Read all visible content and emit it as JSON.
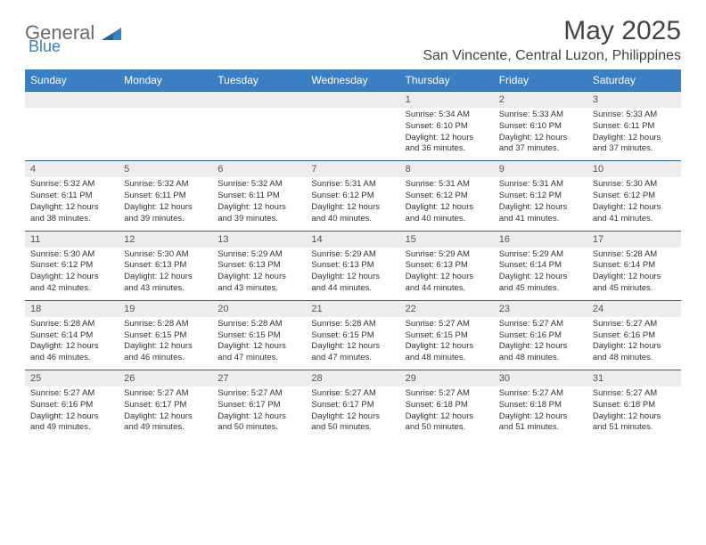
{
  "brand": {
    "part1": "General",
    "part2": "Blue"
  },
  "title": "May 2025",
  "location": "San Vincente, Central Luzon, Philippines",
  "header_color": "#3a7fc4",
  "numrow_bg": "#ededed",
  "border_color": "#2d5f93",
  "day_names": [
    "Sunday",
    "Monday",
    "Tuesday",
    "Wednesday",
    "Thursday",
    "Friday",
    "Saturday"
  ],
  "weeks": [
    {
      "nums": [
        "",
        "",
        "",
        "",
        "1",
        "2",
        "3"
      ],
      "cells": [
        null,
        null,
        null,
        null,
        {
          "sunrise": "5:34 AM",
          "sunset": "6:10 PM",
          "dl1": "Daylight: 12 hours",
          "dl2": "and 36 minutes."
        },
        {
          "sunrise": "5:33 AM",
          "sunset": "6:10 PM",
          "dl1": "Daylight: 12 hours",
          "dl2": "and 37 minutes."
        },
        {
          "sunrise": "5:33 AM",
          "sunset": "6:11 PM",
          "dl1": "Daylight: 12 hours",
          "dl2": "and 37 minutes."
        }
      ]
    },
    {
      "nums": [
        "4",
        "5",
        "6",
        "7",
        "8",
        "9",
        "10"
      ],
      "cells": [
        {
          "sunrise": "5:32 AM",
          "sunset": "6:11 PM",
          "dl1": "Daylight: 12 hours",
          "dl2": "and 38 minutes."
        },
        {
          "sunrise": "5:32 AM",
          "sunset": "6:11 PM",
          "dl1": "Daylight: 12 hours",
          "dl2": "and 39 minutes."
        },
        {
          "sunrise": "5:32 AM",
          "sunset": "6:11 PM",
          "dl1": "Daylight: 12 hours",
          "dl2": "and 39 minutes."
        },
        {
          "sunrise": "5:31 AM",
          "sunset": "6:12 PM",
          "dl1": "Daylight: 12 hours",
          "dl2": "and 40 minutes."
        },
        {
          "sunrise": "5:31 AM",
          "sunset": "6:12 PM",
          "dl1": "Daylight: 12 hours",
          "dl2": "and 40 minutes."
        },
        {
          "sunrise": "5:31 AM",
          "sunset": "6:12 PM",
          "dl1": "Daylight: 12 hours",
          "dl2": "and 41 minutes."
        },
        {
          "sunrise": "5:30 AM",
          "sunset": "6:12 PM",
          "dl1": "Daylight: 12 hours",
          "dl2": "and 41 minutes."
        }
      ]
    },
    {
      "nums": [
        "11",
        "12",
        "13",
        "14",
        "15",
        "16",
        "17"
      ],
      "cells": [
        {
          "sunrise": "5:30 AM",
          "sunset": "6:12 PM",
          "dl1": "Daylight: 12 hours",
          "dl2": "and 42 minutes."
        },
        {
          "sunrise": "5:30 AM",
          "sunset": "6:13 PM",
          "dl1": "Daylight: 12 hours",
          "dl2": "and 43 minutes."
        },
        {
          "sunrise": "5:29 AM",
          "sunset": "6:13 PM",
          "dl1": "Daylight: 12 hours",
          "dl2": "and 43 minutes."
        },
        {
          "sunrise": "5:29 AM",
          "sunset": "6:13 PM",
          "dl1": "Daylight: 12 hours",
          "dl2": "and 44 minutes."
        },
        {
          "sunrise": "5:29 AM",
          "sunset": "6:13 PM",
          "dl1": "Daylight: 12 hours",
          "dl2": "and 44 minutes."
        },
        {
          "sunrise": "5:29 AM",
          "sunset": "6:14 PM",
          "dl1": "Daylight: 12 hours",
          "dl2": "and 45 minutes."
        },
        {
          "sunrise": "5:28 AM",
          "sunset": "6:14 PM",
          "dl1": "Daylight: 12 hours",
          "dl2": "and 45 minutes."
        }
      ]
    },
    {
      "nums": [
        "18",
        "19",
        "20",
        "21",
        "22",
        "23",
        "24"
      ],
      "cells": [
        {
          "sunrise": "5:28 AM",
          "sunset": "6:14 PM",
          "dl1": "Daylight: 12 hours",
          "dl2": "and 46 minutes."
        },
        {
          "sunrise": "5:28 AM",
          "sunset": "6:15 PM",
          "dl1": "Daylight: 12 hours",
          "dl2": "and 46 minutes."
        },
        {
          "sunrise": "5:28 AM",
          "sunset": "6:15 PM",
          "dl1": "Daylight: 12 hours",
          "dl2": "and 47 minutes."
        },
        {
          "sunrise": "5:28 AM",
          "sunset": "6:15 PM",
          "dl1": "Daylight: 12 hours",
          "dl2": "and 47 minutes."
        },
        {
          "sunrise": "5:27 AM",
          "sunset": "6:15 PM",
          "dl1": "Daylight: 12 hours",
          "dl2": "and 48 minutes."
        },
        {
          "sunrise": "5:27 AM",
          "sunset": "6:16 PM",
          "dl1": "Daylight: 12 hours",
          "dl2": "and 48 minutes."
        },
        {
          "sunrise": "5:27 AM",
          "sunset": "6:16 PM",
          "dl1": "Daylight: 12 hours",
          "dl2": "and 48 minutes."
        }
      ]
    },
    {
      "nums": [
        "25",
        "26",
        "27",
        "28",
        "29",
        "30",
        "31"
      ],
      "cells": [
        {
          "sunrise": "5:27 AM",
          "sunset": "6:16 PM",
          "dl1": "Daylight: 12 hours",
          "dl2": "and 49 minutes."
        },
        {
          "sunrise": "5:27 AM",
          "sunset": "6:17 PM",
          "dl1": "Daylight: 12 hours",
          "dl2": "and 49 minutes."
        },
        {
          "sunrise": "5:27 AM",
          "sunset": "6:17 PM",
          "dl1": "Daylight: 12 hours",
          "dl2": "and 50 minutes."
        },
        {
          "sunrise": "5:27 AM",
          "sunset": "6:17 PM",
          "dl1": "Daylight: 12 hours",
          "dl2": "and 50 minutes."
        },
        {
          "sunrise": "5:27 AM",
          "sunset": "6:18 PM",
          "dl1": "Daylight: 12 hours",
          "dl2": "and 50 minutes."
        },
        {
          "sunrise": "5:27 AM",
          "sunset": "6:18 PM",
          "dl1": "Daylight: 12 hours",
          "dl2": "and 51 minutes."
        },
        {
          "sunrise": "5:27 AM",
          "sunset": "6:18 PM",
          "dl1": "Daylight: 12 hours",
          "dl2": "and 51 minutes."
        }
      ]
    }
  ]
}
